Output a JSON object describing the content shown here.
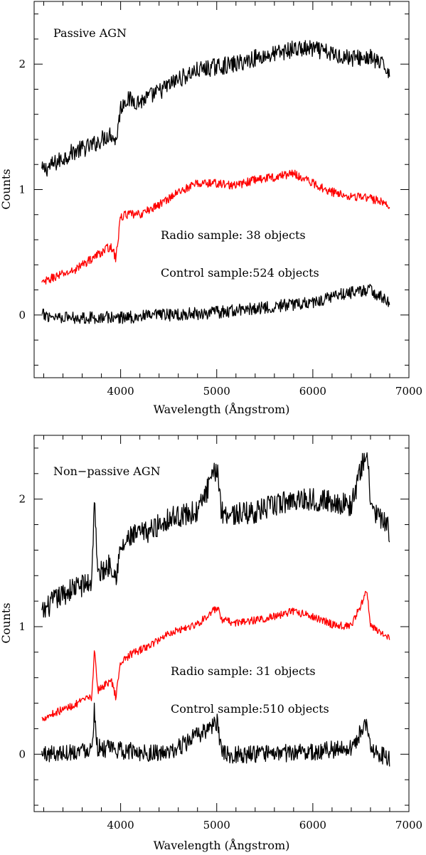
{
  "chart_data": [
    {
      "type": "line",
      "panel_label": "Passive AGN",
      "xlabel": "Wavelength (Ångstrom)",
      "ylabel": "Counts",
      "xlim": [
        3100,
        7000
      ],
      "ylim": [
        -0.5,
        2.5
      ],
      "x_ticks": [
        "4000",
        "5000",
        "6000",
        "7000"
      ],
      "y_ticks": [
        "0",
        "1",
        "2"
      ],
      "annotations": [
        "Radio sample: 38 objects",
        "Control sample:524 objects"
      ],
      "series": [
        {
          "color": "#000000",
          "noise": 0.07,
          "x": [
            3180,
            3300,
            3500,
            3700,
            3800,
            3900,
            3950,
            4000,
            4050,
            4200,
            4400,
            4600,
            4800,
            5000,
            5200,
            5400,
            5600,
            5800,
            6000,
            6200,
            6400,
            6600,
            6800
          ],
          "y": [
            1.15,
            1.2,
            1.3,
            1.35,
            1.4,
            1.45,
            1.38,
            1.65,
            1.72,
            1.7,
            1.78,
            1.88,
            1.95,
            1.98,
            2.0,
            2.05,
            2.08,
            2.12,
            2.12,
            2.08,
            2.05,
            2.05,
            1.95
          ]
        },
        {
          "color": "#ff0000",
          "noise": 0.035,
          "x": [
            3180,
            3300,
            3500,
            3700,
            3800,
            3900,
            3950,
            4000,
            4050,
            4200,
            4400,
            4600,
            4800,
            5000,
            5200,
            5400,
            5600,
            5800,
            6000,
            6200,
            6400,
            6600,
            6800
          ],
          "y": [
            0.25,
            0.3,
            0.35,
            0.45,
            0.5,
            0.55,
            0.45,
            0.78,
            0.8,
            0.8,
            0.88,
            0.98,
            1.05,
            1.05,
            1.03,
            1.08,
            1.1,
            1.13,
            1.05,
            0.98,
            0.95,
            0.93,
            0.88
          ]
        },
        {
          "color": "#000000",
          "noise": 0.05,
          "x": [
            3180,
            3500,
            4000,
            4500,
            5000,
            5500,
            6000,
            6200,
            6400,
            6600,
            6800
          ],
          "y": [
            0.0,
            -0.02,
            -0.02,
            0.0,
            0.02,
            0.06,
            0.1,
            0.15,
            0.18,
            0.2,
            0.1
          ]
        }
      ]
    },
    {
      "type": "line",
      "panel_label": "Non−passive AGN",
      "xlabel": "Wavelength (Ångstrom)",
      "ylabel": "Counts",
      "xlim": [
        3100,
        7000
      ],
      "ylim": [
        -0.45,
        2.5
      ],
      "x_ticks": [
        "4000",
        "5000",
        "6000",
        "7000"
      ],
      "y_ticks": [
        "0",
        "1",
        "2"
      ],
      "annotations": [
        "Radio sample: 31 objects",
        "Control sample:510 objects"
      ],
      "series": [
        {
          "color": "#000000",
          "noise": 0.09,
          "x": [
            3180,
            3300,
            3500,
            3700,
            3727,
            3760,
            3900,
            3950,
            4000,
            4100,
            4300,
            4500,
            4800,
            5007,
            5050,
            5200,
            5400,
            5600,
            5800,
            6000,
            6200,
            6400,
            6563,
            6600,
            6800
          ],
          "y": [
            1.1,
            1.2,
            1.3,
            1.35,
            2.05,
            1.4,
            1.5,
            1.4,
            1.6,
            1.7,
            1.75,
            1.85,
            1.9,
            2.25,
            1.9,
            1.88,
            1.9,
            1.95,
            2.0,
            2.0,
            1.98,
            1.95,
            2.4,
            1.95,
            1.75
          ]
        },
        {
          "color": "#ff0000",
          "noise": 0.03,
          "x": [
            3180,
            3300,
            3500,
            3700,
            3727,
            3760,
            3900,
            3950,
            4000,
            4100,
            4300,
            4500,
            4800,
            5007,
            5050,
            5200,
            5400,
            5600,
            5800,
            6000,
            6200,
            6400,
            6563,
            6600,
            6800
          ],
          "y": [
            0.28,
            0.32,
            0.38,
            0.45,
            0.82,
            0.5,
            0.58,
            0.45,
            0.72,
            0.78,
            0.85,
            0.95,
            1.02,
            1.15,
            1.05,
            1.03,
            1.05,
            1.08,
            1.12,
            1.08,
            1.02,
            1.0,
            1.28,
            1.0,
            0.92
          ]
        },
        {
          "color": "#000000",
          "noise": 0.07,
          "x": [
            3180,
            3500,
            3700,
            3727,
            3760,
            4000,
            4500,
            5007,
            5050,
            5500,
            6000,
            6400,
            6563,
            6600,
            6800
          ],
          "y": [
            0.0,
            0.02,
            0.05,
            0.35,
            0.05,
            0.03,
            0.0,
            0.25,
            0.0,
            0.0,
            0.02,
            0.05,
            0.25,
            0.05,
            -0.05
          ]
        }
      ]
    }
  ]
}
